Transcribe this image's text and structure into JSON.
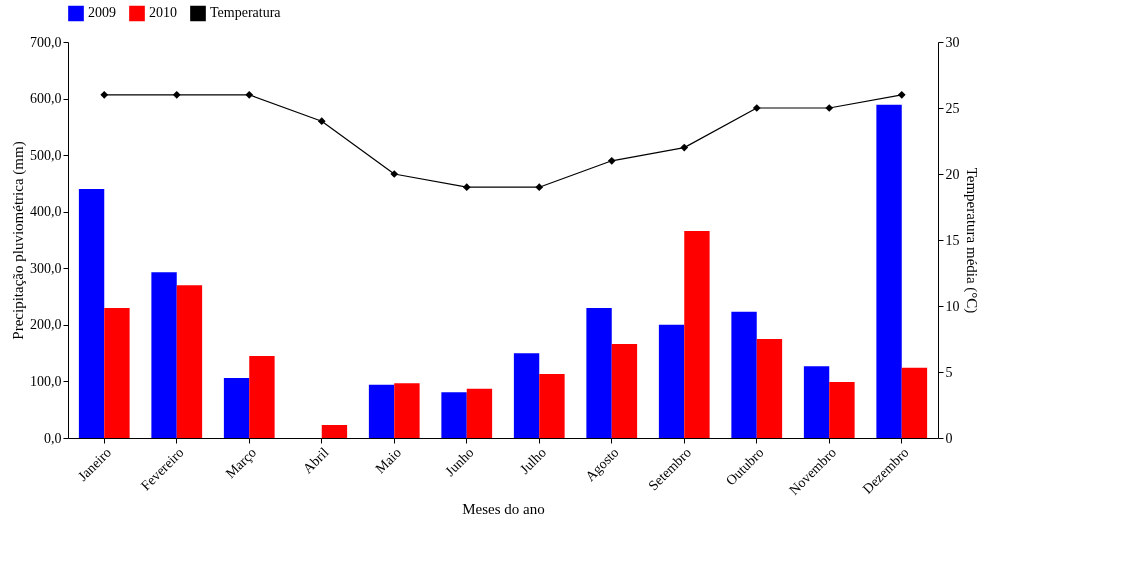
{
  "chart_data": {
    "type": "bar",
    "categories": [
      "Janeiro",
      "Fevereiro",
      "Março",
      "Abril",
      "Maio",
      "Junho",
      "Julho",
      "Agosto",
      "Setembro",
      "Outubro",
      "Novembro",
      "Dezembro"
    ],
    "xlabel": "Meses do ano",
    "ylabel": "Precipitação pluviométrica (mm)",
    "y2label": "Temperatura média (°C)",
    "series": [
      {
        "name": "2009",
        "color": "#0000ff",
        "values": [
          440,
          293,
          106,
          0,
          94,
          81,
          150,
          230,
          200,
          223,
          127,
          589
        ]
      },
      {
        "name": "2010",
        "color": "#ff0000",
        "values": [
          230,
          270,
          145,
          23,
          97,
          87,
          113,
          166,
          366,
          175,
          99,
          124
        ]
      },
      {
        "name": "Temperatura",
        "type": "line",
        "axis": "y2",
        "color": "#000000",
        "values": [
          26,
          26,
          26,
          24,
          20,
          19,
          19,
          21,
          22,
          25,
          25,
          26
        ]
      }
    ],
    "ylim": [
      0,
      700
    ],
    "yticks": [
      {
        "value": 0,
        "label": "0,0"
      },
      {
        "value": 100,
        "label": "100,0"
      },
      {
        "value": 200,
        "label": "200,0"
      },
      {
        "value": 300,
        "label": "300,0"
      },
      {
        "value": 400,
        "label": "400,0"
      },
      {
        "value": 500,
        "label": "500,0"
      },
      {
        "value": 600,
        "label": "600,0"
      },
      {
        "value": 700,
        "label": "700,0"
      }
    ],
    "y2lim": [
      0,
      30
    ],
    "y2ticks": [
      0,
      5,
      10,
      15,
      20,
      25,
      30
    ],
    "grid": false,
    "legend": "top",
    "marker": "diamond",
    "line_style": "solid"
  }
}
